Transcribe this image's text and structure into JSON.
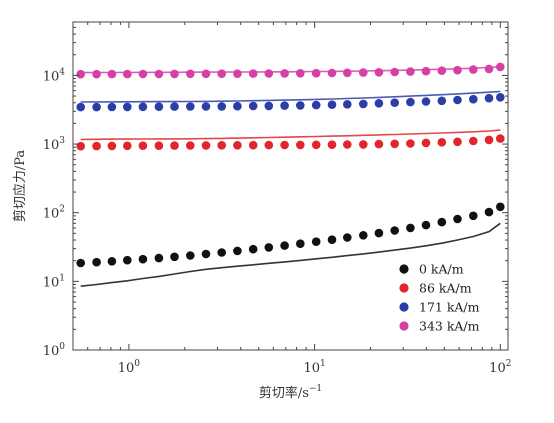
{
  "chart_data": {
    "type": "scatter",
    "xlabel": "剪切率/s",
    "xlabel_exp": "−1",
    "ylabel": "剪切应力/Pa",
    "x_scale": "log",
    "y_scale": "log",
    "xlim": [
      0.5,
      110
    ],
    "ylim": [
      1,
      60000
    ],
    "x_ticks": [
      {
        "value": 1,
        "base": "10",
        "exp": "0"
      },
      {
        "value": 10,
        "base": "10",
        "exp": "1"
      },
      {
        "value": 100,
        "base": "10",
        "exp": "2"
      }
    ],
    "y_ticks": [
      {
        "value": 1,
        "base": "10",
        "exp": "0"
      },
      {
        "value": 10,
        "base": "10",
        "exp": "1"
      },
      {
        "value": 100,
        "base": "10",
        "exp": "2"
      },
      {
        "value": 1000,
        "base": "10",
        "exp": "3"
      },
      {
        "value": 10000,
        "base": "10",
        "exp": "4"
      }
    ],
    "legend_position": "bottom-right",
    "x": [
      0.55,
      0.67,
      0.81,
      0.98,
      1.19,
      1.45,
      1.76,
      2.14,
      2.6,
      3.16,
      3.84,
      4.67,
      5.67,
      6.89,
      8.37,
      10.2,
      12.4,
      15.0,
      18.3,
      22.2,
      27.0,
      32.8,
      39.8,
      48.4,
      58.8,
      71.5,
      86.9,
      100
    ],
    "series": [
      {
        "name": "0 kA/m",
        "color": "#111111",
        "marker_values": [
          18.5,
          19.0,
          19.6,
          20.3,
          21.0,
          21.8,
          22.8,
          23.8,
          25.0,
          26.3,
          27.8,
          29.4,
          31.2,
          33.2,
          35.4,
          37.8,
          40.5,
          43.5,
          46.8,
          50.5,
          55.0,
          60.0,
          66.0,
          73.0,
          81.0,
          90.0,
          102.0,
          122.0
        ],
        "line_values": [
          8.5,
          9.0,
          9.6,
          10.2,
          11.0,
          11.8,
          12.8,
          13.9,
          15.0,
          15.8,
          16.6,
          17.4,
          18.3,
          19.2,
          20.2,
          21.3,
          22.4,
          23.7,
          25.1,
          26.7,
          28.5,
          30.5,
          33.0,
          36.0,
          40.0,
          45.0,
          53.0,
          70.0
        ]
      },
      {
        "name": "86 kA/m",
        "color": "#e0262b",
        "marker_values": [
          930,
          935,
          940,
          942,
          945,
          948,
          950,
          952,
          955,
          958,
          960,
          962,
          965,
          968,
          972,
          975,
          980,
          985,
          990,
          1000,
          1010,
          1020,
          1040,
          1060,
          1080,
          1110,
          1150,
          1200
        ],
        "line_values": [
          1170,
          1175,
          1180,
          1182,
          1185,
          1188,
          1190,
          1195,
          1200,
          1210,
          1220,
          1232,
          1245,
          1260,
          1275,
          1290,
          1305,
          1320,
          1340,
          1360,
          1380,
          1400,
          1425,
          1450,
          1480,
          1510,
          1550,
          1600
        ]
      },
      {
        "name": "171 kA/m",
        "color": "#2b3ea6",
        "marker_values": [
          3450,
          3460,
          3470,
          3480,
          3490,
          3500,
          3510,
          3520,
          3530,
          3540,
          3560,
          3580,
          3600,
          3630,
          3660,
          3700,
          3740,
          3790,
          3850,
          3920,
          4000,
          4080,
          4170,
          4270,
          4380,
          4500,
          4650,
          4800
        ],
        "line_values": [
          4100,
          4110,
          4120,
          4130,
          4140,
          4150,
          4160,
          4170,
          4190,
          4210,
          4240,
          4280,
          4320,
          4370,
          4420,
          4480,
          4540,
          4610,
          4690,
          4780,
          4880,
          4990,
          5110,
          5240,
          5380,
          5530,
          5700,
          5850
        ]
      },
      {
        "name": "343 kA/m",
        "color": "#d63fa6",
        "marker_values": [
          10400,
          10420,
          10440,
          10460,
          10480,
          10500,
          10520,
          10540,
          10560,
          10580,
          10600,
          10630,
          10660,
          10700,
          10740,
          10790,
          10850,
          10920,
          11000,
          11100,
          11220,
          11360,
          11520,
          11700,
          11900,
          12150,
          12450,
          13300
        ],
        "line_values": [
          11000,
          11020,
          11040,
          11060,
          11080,
          11100,
          11120,
          11140,
          11160,
          11180,
          11200,
          11230,
          11260,
          11300,
          11340,
          11390,
          11450,
          11520,
          11600,
          11700,
          11820,
          11960,
          12120,
          12300,
          12500,
          12740,
          13020,
          13350
        ]
      }
    ]
  }
}
